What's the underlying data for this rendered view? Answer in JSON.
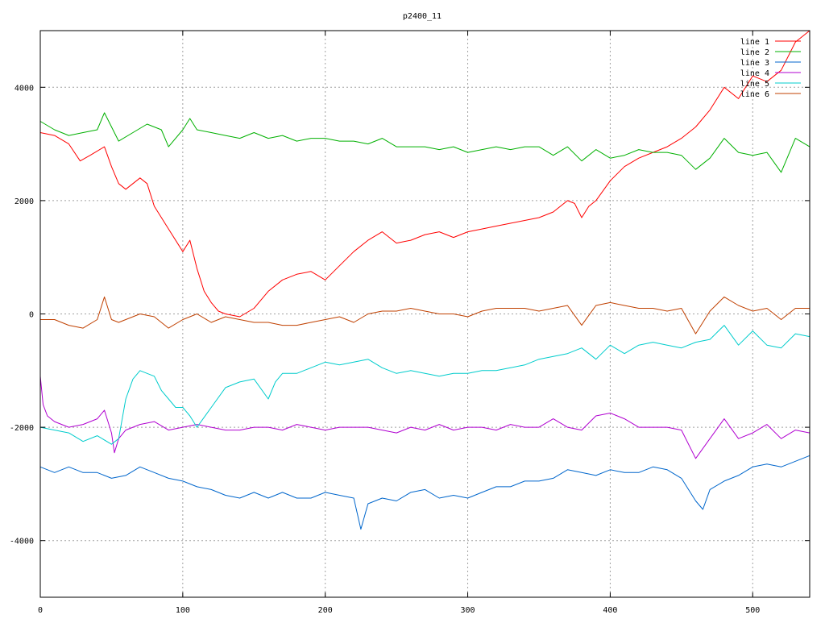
{
  "chart_data": {
    "type": "line",
    "title": "p2400_11",
    "xlabel": "",
    "ylabel": "",
    "xlim": [
      0,
      540
    ],
    "ylim": [
      -5000,
      5000
    ],
    "x_ticks": [
      0,
      100,
      200,
      300,
      400,
      500
    ],
    "y_ticks": [
      -4000,
      -2000,
      0,
      2000,
      4000
    ],
    "grid": true,
    "legend_position": "top-right",
    "series": [
      {
        "name": "line 1",
        "color": "#ff0000",
        "x": [
          0,
          10,
          20,
          28,
          35,
          45,
          50,
          55,
          60,
          70,
          75,
          80,
          90,
          100,
          105,
          110,
          115,
          120,
          125,
          130,
          140,
          150,
          160,
          170,
          180,
          190,
          200,
          210,
          220,
          230,
          240,
          250,
          260,
          270,
          280,
          290,
          300,
          310,
          320,
          330,
          340,
          350,
          360,
          370,
          375,
          380,
          385,
          390,
          400,
          410,
          420,
          430,
          440,
          450,
          460,
          470,
          480,
          490,
          500,
          510,
          520,
          530,
          540
        ],
        "values": [
          3200,
          3150,
          3000,
          2700,
          2800,
          2950,
          2600,
          2300,
          2200,
          2400,
          2300,
          1900,
          1500,
          1100,
          1300,
          800,
          400,
          200,
          50,
          0,
          -50,
          100,
          400,
          600,
          700,
          750,
          600,
          850,
          1100,
          1300,
          1450,
          1250,
          1300,
          1400,
          1450,
          1350,
          1450,
          1500,
          1550,
          1600,
          1650,
          1700,
          1800,
          2000,
          1950,
          1700,
          1900,
          2000,
          2350,
          2600,
          2750,
          2850,
          2950,
          3100,
          3300,
          3600,
          4000,
          3800,
          4200,
          4100,
          4300,
          4800,
          5000
        ]
      },
      {
        "name": "line 2",
        "color": "#00b000",
        "x": [
          0,
          10,
          20,
          30,
          40,
          45,
          55,
          65,
          75,
          85,
          90,
          100,
          105,
          110,
          120,
          130,
          140,
          150,
          160,
          170,
          180,
          190,
          200,
          210,
          220,
          230,
          240,
          250,
          260,
          270,
          280,
          290,
          300,
          310,
          320,
          330,
          340,
          350,
          360,
          370,
          380,
          390,
          400,
          410,
          420,
          430,
          440,
          450,
          460,
          470,
          480,
          490,
          500,
          510,
          520,
          530,
          540
        ],
        "values": [
          3400,
          3250,
          3150,
          3200,
          3250,
          3550,
          3050,
          3200,
          3350,
          3250,
          2950,
          3250,
          3450,
          3250,
          3200,
          3150,
          3100,
          3200,
          3100,
          3150,
          3050,
          3100,
          3100,
          3050,
          3050,
          3000,
          3100,
          2950,
          2950,
          2950,
          2900,
          2950,
          2850,
          2900,
          2950,
          2900,
          2950,
          2950,
          2800,
          2950,
          2700,
          2900,
          2750,
          2800,
          2900,
          2850,
          2850,
          2800,
          2550,
          2750,
          3100,
          2850,
          2800,
          2850,
          2500,
          3100,
          2950
        ]
      },
      {
        "name": "line 3",
        "color": "#0066cc",
        "x": [
          0,
          10,
          20,
          30,
          40,
          50,
          60,
          70,
          80,
          90,
          100,
          110,
          120,
          130,
          140,
          150,
          160,
          170,
          180,
          190,
          200,
          210,
          220,
          225,
          230,
          240,
          250,
          260,
          270,
          280,
          290,
          300,
          310,
          320,
          330,
          340,
          350,
          360,
          370,
          380,
          390,
          400,
          410,
          420,
          430,
          440,
          450,
          460,
          465,
          470,
          480,
          490,
          500,
          510,
          520,
          530,
          540
        ],
        "values": [
          -2700,
          -2800,
          -2700,
          -2800,
          -2800,
          -2900,
          -2850,
          -2700,
          -2800,
          -2900,
          -2950,
          -3050,
          -3100,
          -3200,
          -3250,
          -3150,
          -3250,
          -3150,
          -3250,
          -3250,
          -3150,
          -3200,
          -3250,
          -3800,
          -3350,
          -3250,
          -3300,
          -3150,
          -3100,
          -3250,
          -3200,
          -3250,
          -3150,
          -3050,
          -3050,
          -2950,
          -2950,
          -2900,
          -2750,
          -2800,
          -2850,
          -2750,
          -2800,
          -2800,
          -2700,
          -2750,
          -2900,
          -3300,
          -3450,
          -3100,
          -2950,
          -2850,
          -2700,
          -2650,
          -2700,
          -2600,
          -2500
        ]
      },
      {
        "name": "line 4",
        "color": "#b000d0",
        "x": [
          0,
          2,
          5,
          10,
          20,
          30,
          40,
          45,
          50,
          52,
          55,
          60,
          70,
          80,
          90,
          100,
          110,
          120,
          130,
          140,
          150,
          160,
          170,
          180,
          190,
          200,
          210,
          220,
          230,
          240,
          250,
          260,
          270,
          280,
          290,
          300,
          310,
          320,
          330,
          340,
          350,
          360,
          370,
          380,
          390,
          400,
          410,
          420,
          430,
          440,
          450,
          460,
          470,
          480,
          490,
          500,
          510,
          520,
          530,
          540
        ],
        "values": [
          -1100,
          -1600,
          -1800,
          -1900,
          -2000,
          -1950,
          -1850,
          -1700,
          -2100,
          -2450,
          -2200,
          -2050,
          -1950,
          -1900,
          -2050,
          -2000,
          -1950,
          -2000,
          -2050,
          -2050,
          -2000,
          -2000,
          -2050,
          -1950,
          -2000,
          -2050,
          -2000,
          -2000,
          -2000,
          -2050,
          -2100,
          -2000,
          -2050,
          -1950,
          -2050,
          -2000,
          -2000,
          -2050,
          -1950,
          -2000,
          -2000,
          -1850,
          -2000,
          -2050,
          -1800,
          -1750,
          -1850,
          -2000,
          -2000,
          -2000,
          -2050,
          -2550,
          -2200,
          -1850,
          -2200,
          -2100,
          -1950,
          -2200,
          -2050,
          -2100
        ]
      },
      {
        "name": "line 5",
        "color": "#00cccc",
        "x": [
          0,
          10,
          20,
          30,
          40,
          50,
          55,
          60,
          65,
          70,
          75,
          80,
          85,
          90,
          95,
          100,
          105,
          110,
          120,
          130,
          140,
          150,
          160,
          165,
          170,
          180,
          190,
          200,
          210,
          220,
          230,
          240,
          250,
          260,
          270,
          280,
          290,
          300,
          310,
          320,
          330,
          340,
          350,
          360,
          370,
          380,
          390,
          400,
          410,
          420,
          430,
          440,
          450,
          460,
          470,
          480,
          490,
          500,
          510,
          520,
          530,
          540
        ],
        "values": [
          -2000,
          -2050,
          -2100,
          -2250,
          -2150,
          -2300,
          -2200,
          -1500,
          -1150,
          -1000,
          -1050,
          -1100,
          -1350,
          -1500,
          -1650,
          -1650,
          -1800,
          -2000,
          -1650,
          -1300,
          -1200,
          -1150,
          -1500,
          -1200,
          -1050,
          -1050,
          -950,
          -850,
          -900,
          -850,
          -800,
          -950,
          -1050,
          -1000,
          -1050,
          -1100,
          -1050,
          -1050,
          -1000,
          -1000,
          -950,
          -900,
          -800,
          -750,
          -700,
          -600,
          -800,
          -550,
          -700,
          -550,
          -500,
          -550,
          -600,
          -500,
          -450,
          -200,
          -550,
          -300,
          -550,
          -600,
          -350,
          -400
        ]
      },
      {
        "name": "line 6",
        "color": "#c04000",
        "x": [
          0,
          10,
          20,
          30,
          40,
          45,
          50,
          55,
          60,
          70,
          80,
          90,
          100,
          110,
          120,
          130,
          140,
          150,
          160,
          170,
          180,
          190,
          200,
          210,
          220,
          230,
          240,
          250,
          260,
          270,
          280,
          290,
          300,
          310,
          320,
          330,
          340,
          350,
          360,
          370,
          380,
          390,
          400,
          410,
          420,
          430,
          440,
          450,
          460,
          470,
          480,
          490,
          500,
          510,
          520,
          530,
          540
        ],
        "values": [
          -100,
          -100,
          -200,
          -250,
          -100,
          300,
          -100,
          -150,
          -100,
          0,
          -50,
          -250,
          -100,
          0,
          -150,
          -50,
          -100,
          -150,
          -150,
          -200,
          -200,
          -150,
          -100,
          -50,
          -150,
          0,
          50,
          50,
          100,
          50,
          0,
          0,
          -50,
          50,
          100,
          100,
          100,
          50,
          100,
          150,
          -200,
          150,
          200,
          150,
          100,
          100,
          50,
          100,
          -350,
          50,
          300,
          150,
          50,
          100,
          -100,
          100,
          100
        ]
      }
    ]
  }
}
